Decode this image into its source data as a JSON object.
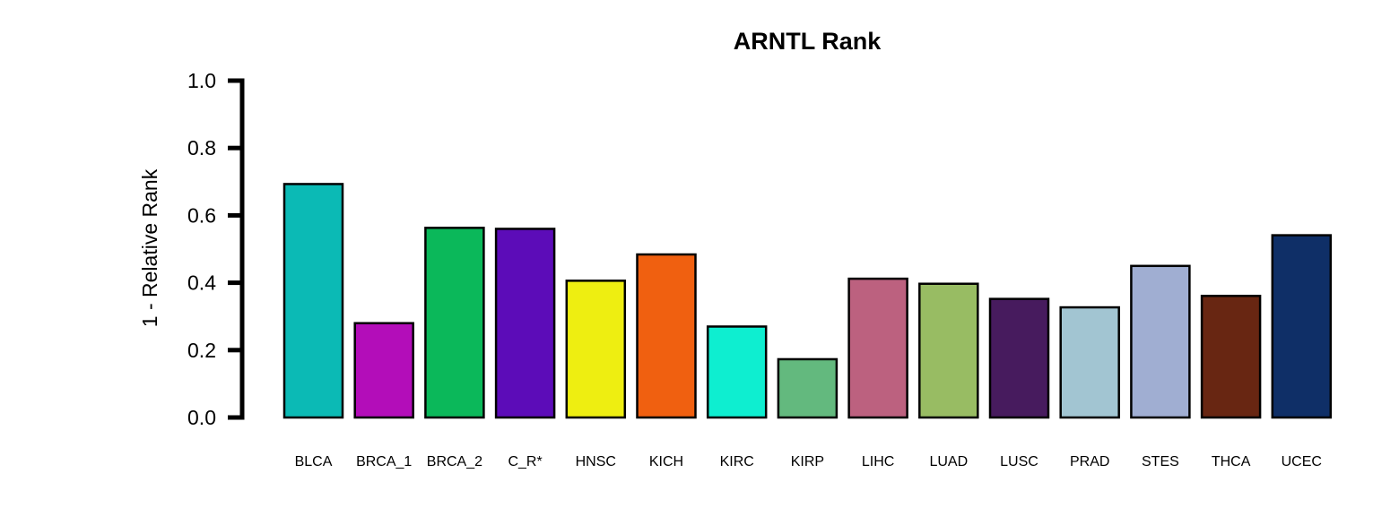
{
  "chart_data": {
    "type": "bar",
    "title": "ARNTL Rank",
    "xlabel": "",
    "ylabel": "1 - Relative Rank",
    "ylim": [
      0,
      1
    ],
    "yticks": [
      "0.0",
      "0.2",
      "0.4",
      "0.6",
      "0.8",
      "1.0"
    ],
    "ytick_values": [
      0,
      0.2,
      0.4,
      0.6,
      0.8,
      1.0
    ],
    "grid": false,
    "legend": "none",
    "categories": [
      "BLCA",
      "BRCA_1",
      "BRCA_2",
      "C_R*",
      "HNSC",
      "KICH",
      "KIRC",
      "KIRP",
      "LIHC",
      "LUAD",
      "LUSC",
      "PRAD",
      "STES",
      "THCA",
      "UCEC"
    ],
    "values": [
      0.693,
      0.28,
      0.563,
      0.56,
      0.406,
      0.484,
      0.27,
      0.173,
      0.412,
      0.397,
      0.352,
      0.327,
      0.45,
      0.361,
      0.541
    ],
    "colors": [
      "#0BBAB5",
      "#B30DB9",
      "#0BB85A",
      "#5C0CB8",
      "#EEEE11",
      "#F06010",
      "#0EEED0",
      "#63B97E",
      "#BC617F",
      "#98BC63",
      "#471B5E",
      "#A2C5D2",
      "#A0AED2",
      "#682612",
      "#0F2F67"
    ]
  }
}
